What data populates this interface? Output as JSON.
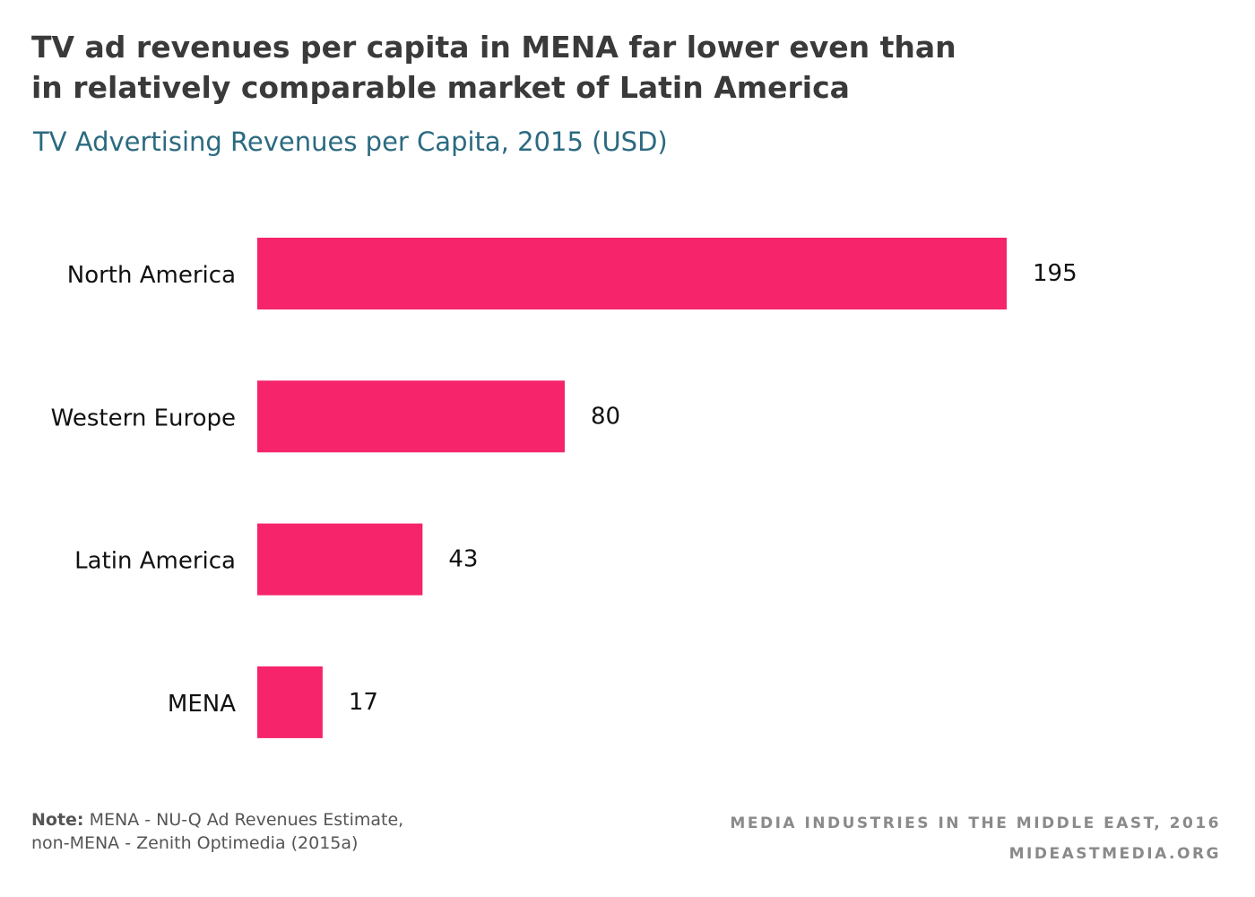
{
  "title_line1": "TV ad revenues per capita in MENA far lower even than",
  "title_line2": "in relatively comparable market of Latin America",
  "subtitle": "TV Advertising Revenues per Capita, 2015 (USD)",
  "note_label": "Note:",
  "note_line1": "MENA - NU-Q Ad Revenues Estimate,",
  "note_line2": "non-MENA - Zenith Optimedia (2015a)",
  "credit_line1": "MEDIA INDUSTRIES IN THE MIDDLE EAST, 2016",
  "credit_line2": "MIDEASTMEDIA.ORG",
  "colors": {
    "bar": "#f5246b",
    "title": "#3a3a3a",
    "subtitle": "#2b6a80",
    "credit": "#8a8a8a"
  },
  "chart_data": {
    "type": "bar",
    "orientation": "horizontal",
    "title": "TV ad revenues per capita in MENA far lower even than in relatively comparable market of Latin America",
    "subtitle": "TV Advertising Revenues per Capita, 2015 (USD)",
    "categories": [
      "North America",
      "Western Europe",
      "Latin America",
      "MENA"
    ],
    "values": [
      195,
      80,
      43,
      17
    ],
    "data_labels": [
      "195",
      "80",
      "43",
      "17"
    ],
    "xlim": [
      0,
      195
    ],
    "grid": false,
    "legend": "none"
  }
}
